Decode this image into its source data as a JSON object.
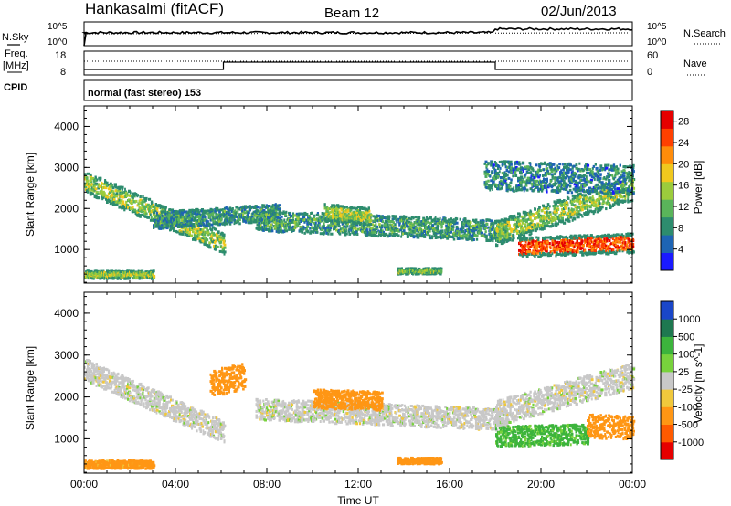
{
  "header": {
    "station": "Hankasalmi (fitACF)",
    "beam": "Beam 12",
    "date": "02/Jun/2013"
  },
  "top_panels": {
    "nsky_label": "N.Sky",
    "nsearch_label": "N.Search",
    "noise_ticks": [
      "10^5",
      "10^0"
    ],
    "freq_label_1": "Freq.",
    "freq_label_2": "[MHz]",
    "freq_ticks": [
      "18",
      "8"
    ],
    "nave_label": "Nave",
    "nave_ticks": [
      "60",
      "0"
    ],
    "cpid_label": "CPID",
    "cpid_value": "normal (fast stereo) 153"
  },
  "chart_data": [
    {
      "type": "heatmap",
      "name": "power",
      "xlabel": "",
      "ylabel": "Slant Range [km]",
      "x_ticks": [
        "00:00",
        "04:00",
        "08:00",
        "12:00",
        "16:00",
        "20:00",
        "00:00"
      ],
      "y_ticks": [
        "1000",
        "2000",
        "3000",
        "4000"
      ],
      "xlim_hours": [
        0,
        24
      ],
      "ylim_km": [
        180,
        4500
      ],
      "colorbar_label": "Power [dB]",
      "colorbar_ticks": [
        "4",
        "8",
        "12",
        "16",
        "20",
        "24",
        "28"
      ],
      "colorscale": [
        "#1a1aff",
        "#1e64b4",
        "#2d8c6e",
        "#5ab45a",
        "#9ccc3c",
        "#f0c81e",
        "#ff8c0a",
        "#ff4000",
        "#e60000"
      ],
      "value_range_db": [
        0,
        30
      ],
      "bands": [
        {
          "t0": 0.0,
          "t1": 6.1,
          "r0": 2650,
          "r1": 1150,
          "w": 330,
          "v": 14
        },
        {
          "t0": 3.0,
          "t1": 8.5,
          "r0": 1700,
          "r1": 1900,
          "w": 260,
          "v": 9
        },
        {
          "t0": 7.5,
          "t1": 18.5,
          "r0": 1700,
          "r1": 1450,
          "w": 320,
          "v": 10
        },
        {
          "t0": 10.5,
          "t1": 12.5,
          "r0": 1900,
          "r1": 1800,
          "w": 260,
          "v": 15
        },
        {
          "t0": 18.0,
          "t1": 24.0,
          "r0": 1400,
          "r1": 2500,
          "w": 380,
          "v": 14
        },
        {
          "t0": 19.0,
          "t1": 24.0,
          "r0": 1050,
          "r1": 1150,
          "w": 300,
          "v": 25
        },
        {
          "t0": 0.0,
          "t1": 3.0,
          "r0": 380,
          "r1": 380,
          "w": 120,
          "v": 15
        },
        {
          "t0": 13.7,
          "t1": 15.6,
          "r0": 470,
          "r1": 470,
          "w": 90,
          "v": 13
        },
        {
          "t0": 17.5,
          "t1": 24.0,
          "r0": 2800,
          "r1": 2700,
          "w": 450,
          "v": 8
        }
      ]
    },
    {
      "type": "heatmap",
      "name": "velocity",
      "xlabel": "Time UT",
      "ylabel": "Slant Range [km]",
      "x_ticks": [
        "00:00",
        "04:00",
        "08:00",
        "12:00",
        "16:00",
        "20:00",
        "00:00"
      ],
      "y_ticks": [
        "1000",
        "2000",
        "3000",
        "4000"
      ],
      "xlim_hours": [
        0,
        24
      ],
      "ylim_km": [
        180,
        4500
      ],
      "colorbar_label": "Velocity [m s^-1]",
      "colorbar_ticks": [
        "1000",
        "500",
        "100",
        "25",
        "-25",
        "-100",
        "-500",
        "-1000"
      ],
      "colorscale": [
        "#e60000",
        "#ff5a00",
        "#ff9614",
        "#f0c83c",
        "#c8c8c8",
        "#78d23c",
        "#3cb43c",
        "#1e7850",
        "#1a46c8"
      ],
      "value_range_ms": [
        -1000,
        1000
      ],
      "bands": [
        {
          "t0": 0.0,
          "t1": 6.1,
          "r0": 2650,
          "r1": 1150,
          "w": 330,
          "v": 0
        },
        {
          "t0": 5.5,
          "t1": 7.0,
          "r0": 2300,
          "r1": 2500,
          "w": 400,
          "v": -320
        },
        {
          "t0": 7.5,
          "t1": 18.5,
          "r0": 1700,
          "r1": 1450,
          "w": 320,
          "v": 0
        },
        {
          "t0": 10.0,
          "t1": 13.0,
          "r0": 1950,
          "r1": 1900,
          "w": 280,
          "v": -250
        },
        {
          "t0": 18.0,
          "t1": 24.0,
          "r0": 1600,
          "r1": 2500,
          "w": 380,
          "v": 0
        },
        {
          "t0": 18.0,
          "t1": 22.0,
          "r0": 1050,
          "r1": 1100,
          "w": 300,
          "v": 150
        },
        {
          "t0": 22.0,
          "t1": 24.0,
          "r0": 1300,
          "r1": 1250,
          "w": 350,
          "v": -200
        },
        {
          "t0": 0.0,
          "t1": 3.0,
          "r0": 380,
          "r1": 380,
          "w": 120,
          "v": -180
        },
        {
          "t0": 13.7,
          "t1": 15.6,
          "r0": 470,
          "r1": 470,
          "w": 90,
          "v": -220
        }
      ]
    }
  ]
}
